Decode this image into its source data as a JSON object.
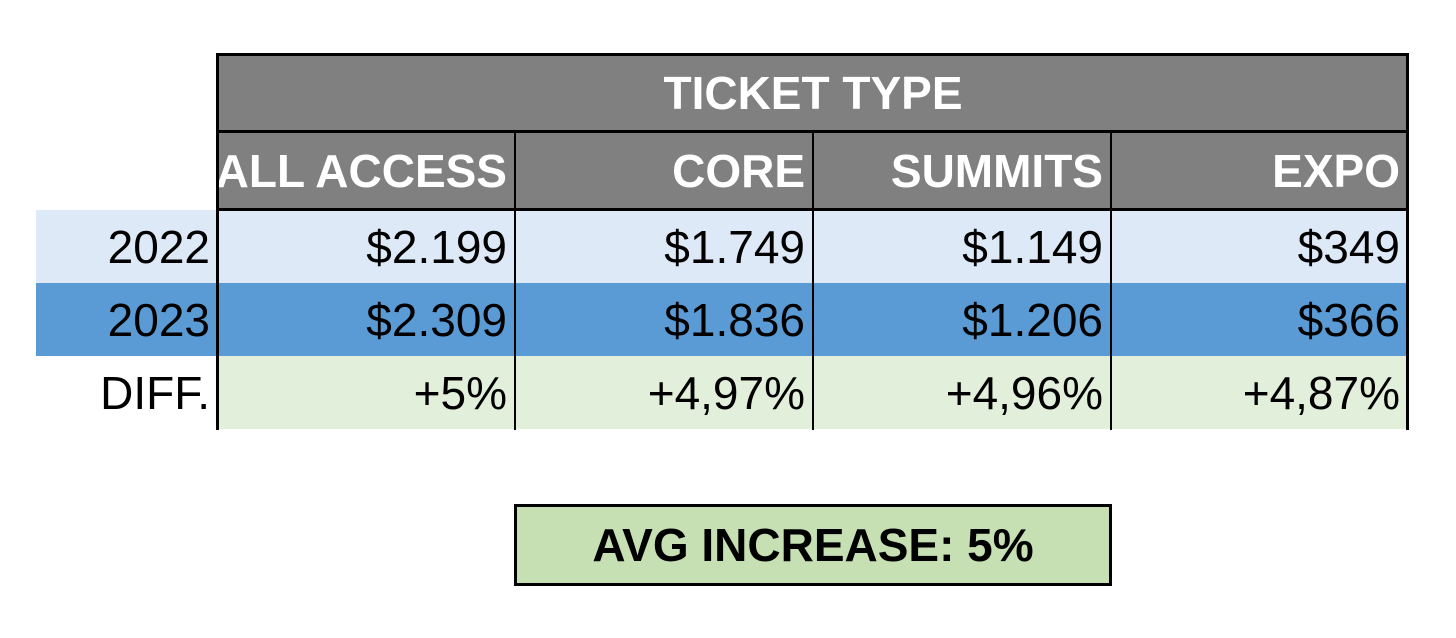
{
  "chart_data": {
    "type": "table",
    "header": "TICKET TYPE",
    "columns": [
      "ALL ACCESS",
      "CORE",
      "SUMMITS",
      "EXPO"
    ],
    "rows": [
      {
        "label": "2022",
        "values": [
          "$2.199",
          "$1.749",
          "$1.149",
          "$349"
        ]
      },
      {
        "label": "2023",
        "values": [
          "$2.309",
          "$1.836",
          "$1.206",
          "$366"
        ]
      },
      {
        "label": "DIFF.",
        "values": [
          "+5%",
          "+4,97%",
          "+4,96%",
          "+4,87%"
        ]
      }
    ],
    "summary": "AVG INCREASE: 5%"
  },
  "colors": {
    "header_bg": "#808080",
    "row_2022_bg": "#dde9f6",
    "row_2023_bg": "#5b9bd5",
    "row_diff_bg": "#e2efda",
    "summary_bg": "#c6e0b4"
  }
}
